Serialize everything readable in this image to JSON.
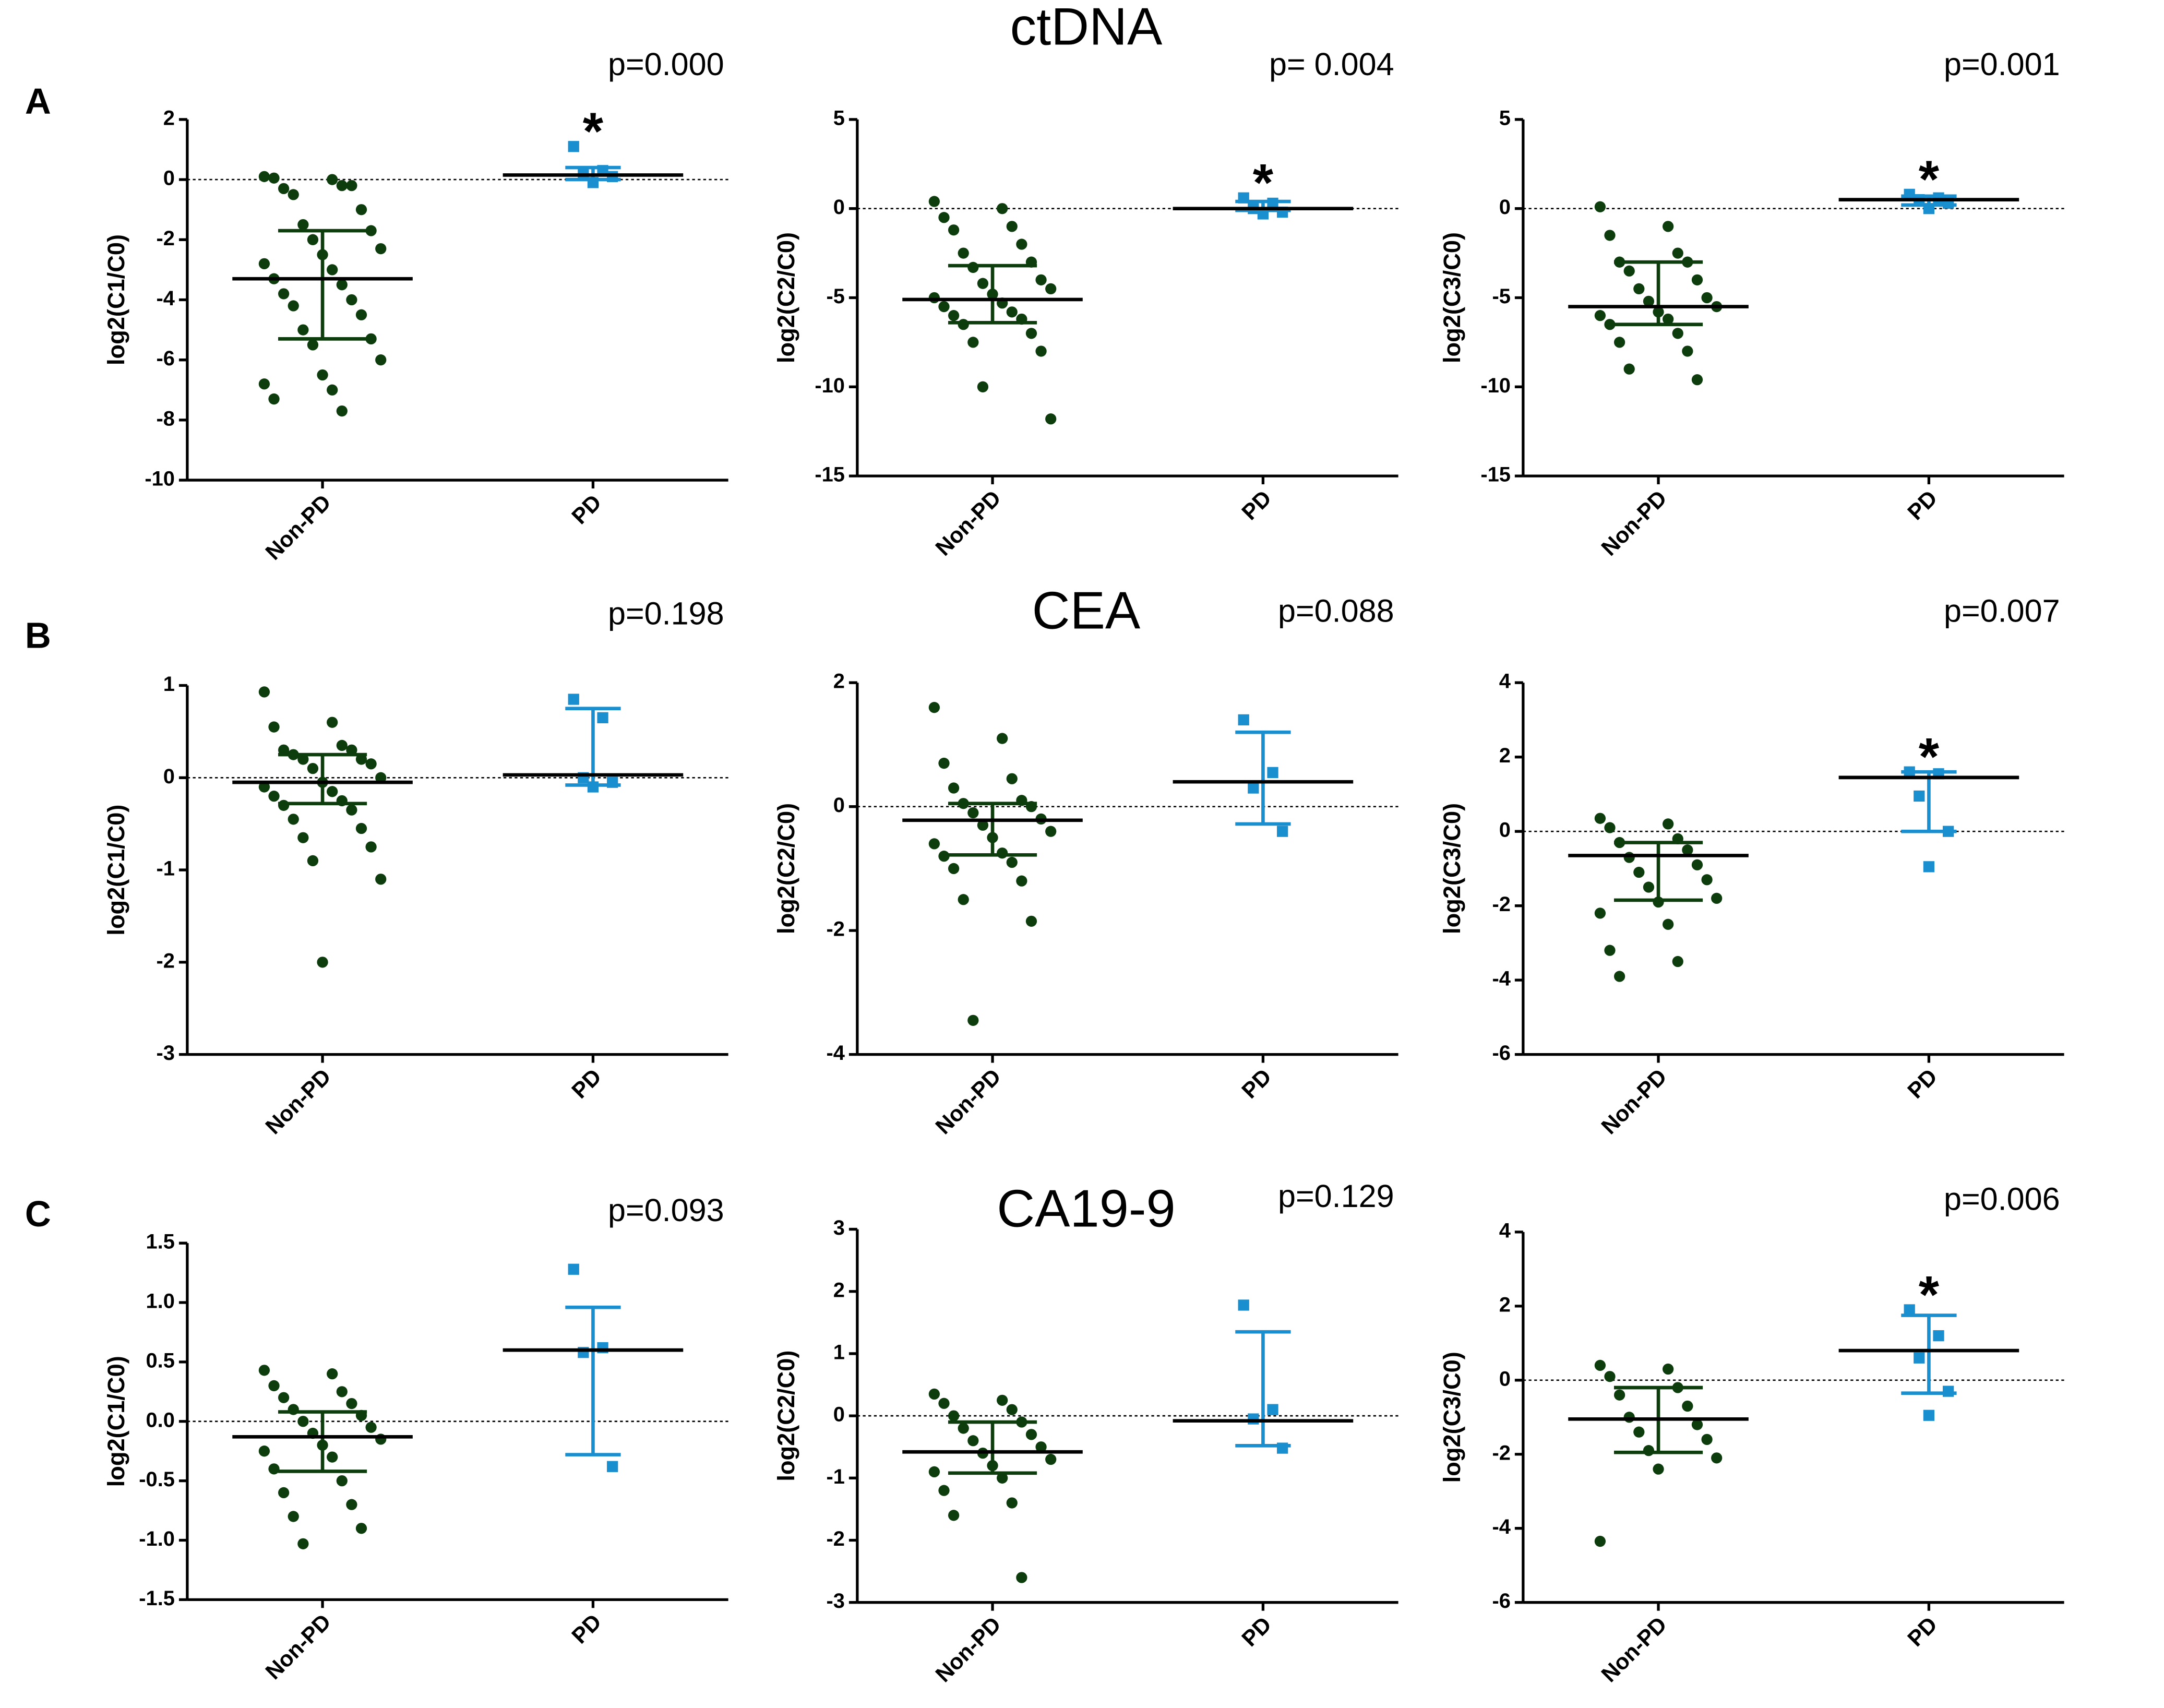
{
  "rows": [
    {
      "label": "A",
      "title": "ctDNA"
    },
    {
      "label": "B",
      "title": "CEA"
    },
    {
      "label": "C",
      "title": "CA19-9"
    }
  ],
  "chart_data": [
    {
      "type": "strip",
      "ylabel": "log2(C1/C0)",
      "categories": [
        "Non-PD",
        "PD"
      ],
      "ylim": [
        -10,
        2
      ],
      "yticks": [
        -10,
        -8,
        -6,
        -4,
        -2,
        0,
        2
      ],
      "reference_line": 0,
      "annotation": "p=0.000",
      "significance": "*",
      "groups": [
        {
          "color": "#0d3d0d",
          "values": [
            0.1,
            0,
            0.05,
            -0.2,
            -0.3,
            -0.2,
            -0.5,
            -1,
            -1.5,
            -1.7,
            -2,
            -2.3,
            -2.5,
            -2.8,
            -3,
            -3.3,
            -3.5,
            -3.8,
            -4,
            -4.2,
            -4.5,
            -5,
            -5.3,
            -5.5,
            -6,
            -6.5,
            -6.8,
            -7,
            -7.3,
            -7.7
          ],
          "center": -3.3,
          "lower": -5.3,
          "upper": -1.7
        },
        {
          "color": "#1a8fd0",
          "values": [
            1.1,
            0.3,
            0.2,
            0.1,
            -0.1
          ],
          "center": 0.15,
          "lower": 0,
          "upper": 0.4
        }
      ]
    },
    {
      "type": "strip",
      "ylabel": "log2(C2/C0)",
      "categories": [
        "Non-PD",
        "PD"
      ],
      "ylim": [
        -15,
        5
      ],
      "yticks": [
        -15,
        -10,
        -5,
        0,
        5
      ],
      "reference_line": 0,
      "annotation": "p= 0.004",
      "significance": "*",
      "groups": [
        {
          "color": "#0d3d0d",
          "values": [
            0.4,
            0,
            -0.5,
            -1,
            -1.2,
            -2,
            -2.5,
            -3,
            -3.3,
            -4,
            -4.2,
            -4.5,
            -4.8,
            -5,
            -5.3,
            -5.5,
            -5.8,
            -6,
            -6.2,
            -6.5,
            -7,
            -7.5,
            -8,
            -10,
            -11.8
          ],
          "center": -5.1,
          "lower": -6.4,
          "upper": -3.2
        },
        {
          "color": "#1a8fd0",
          "values": [
            0.6,
            0.3,
            0,
            -0.2,
            -0.3
          ],
          "center": 0,
          "lower": -0.1,
          "upper": 0.4
        }
      ]
    },
    {
      "type": "strip",
      "ylabel": "log2(C3/C0)",
      "categories": [
        "Non-PD",
        "PD"
      ],
      "ylim": [
        -15,
        5
      ],
      "yticks": [
        -15,
        -10,
        -5,
        0,
        5
      ],
      "reference_line": 0,
      "annotation": "p=0.001",
      "significance": "*",
      "groups": [
        {
          "color": "#0d3d0d",
          "values": [
            0.1,
            -1,
            -1.5,
            -2.5,
            -3,
            -3,
            -3.5,
            -4,
            -4.5,
            -5,
            -5.2,
            -5.5,
            -5.8,
            -6,
            -6.2,
            -6.5,
            -7,
            -7.5,
            -8,
            -9,
            -9.6
          ],
          "center": -5.5,
          "lower": -6.5,
          "upper": -3
        },
        {
          "color": "#1a8fd0",
          "values": [
            0.8,
            0.6,
            0.5,
            0.3,
            0
          ],
          "center": 0.5,
          "lower": 0.2,
          "upper": 0.7
        }
      ]
    },
    {
      "type": "strip",
      "ylabel": "log2(C1/C0)",
      "categories": [
        "Non-PD",
        "PD"
      ],
      "ylim": [
        -3,
        1
      ],
      "yticks": [
        -3,
        -2,
        -1,
        0,
        1
      ],
      "reference_line": 0,
      "annotation": "p=0.198",
      "groups": [
        {
          "color": "#0d3d0d",
          "values": [
            0.93,
            0.6,
            0.55,
            0.35,
            0.3,
            0.3,
            0.25,
            0.2,
            0.2,
            0.15,
            0.1,
            0,
            -0.05,
            -0.1,
            -0.15,
            -0.2,
            -0.25,
            -0.3,
            -0.35,
            -0.45,
            -0.55,
            -0.65,
            -0.75,
            -0.9,
            -1.1,
            -2.0
          ],
          "center": -0.05,
          "lower": -0.28,
          "upper": 0.25
        },
        {
          "color": "#1a8fd0",
          "values": [
            0.85,
            0.65,
            0,
            -0.05,
            -0.1
          ],
          "center": 0.03,
          "lower": -0.08,
          "upper": 0.75
        }
      ]
    },
    {
      "type": "strip",
      "ylabel": "log2(C2/C0)",
      "categories": [
        "Non-PD",
        "PD"
      ],
      "ylim": [
        -4,
        2
      ],
      "yticks": [
        -4,
        -2,
        0,
        2
      ],
      "reference_line": 0,
      "annotation": "p=0.088",
      "groups": [
        {
          "color": "#0d3d0d",
          "values": [
            1.6,
            1.1,
            0.7,
            0.45,
            0.3,
            0.1,
            0.05,
            0,
            -0.1,
            -0.2,
            -0.3,
            -0.4,
            -0.5,
            -0.6,
            -0.75,
            -0.8,
            -0.9,
            -1,
            -1.2,
            -1.5,
            -1.85,
            -3.45
          ],
          "center": -0.22,
          "lower": -0.78,
          "upper": 0.05
        },
        {
          "color": "#1a8fd0",
          "values": [
            1.4,
            0.55,
            0.3,
            -0.4
          ],
          "center": 0.4,
          "lower": -0.28,
          "upper": 1.2
        }
      ]
    },
    {
      "type": "strip",
      "ylabel": "log2(C3/C0)",
      "categories": [
        "Non-PD",
        "PD"
      ],
      "ylim": [
        -6,
        4
      ],
      "yticks": [
        -6,
        -4,
        -2,
        0,
        2,
        4
      ],
      "reference_line": 0,
      "annotation": "p=0.007",
      "significance": "*",
      "groups": [
        {
          "color": "#0d3d0d",
          "values": [
            0.35,
            0.2,
            0.1,
            -0.2,
            -0.3,
            -0.5,
            -0.7,
            -0.9,
            -1.1,
            -1.3,
            -1.5,
            -1.8,
            -1.9,
            -2.2,
            -2.5,
            -3.2,
            -3.5,
            -3.9
          ],
          "center": -0.65,
          "lower": -1.85,
          "upper": -0.3
        },
        {
          "color": "#1a8fd0",
          "values": [
            1.6,
            1.55,
            0.95,
            0,
            -0.95
          ],
          "center": 1.45,
          "lower": 0,
          "upper": 1.6
        }
      ]
    },
    {
      "type": "strip",
      "ylabel": "log2(C1/C0)",
      "categories": [
        "Non-PD",
        "PD"
      ],
      "ylim": [
        -1.5,
        1.5
      ],
      "yticks": [
        -1.5,
        {
          "value": -1,
          "label": "-1.0"
        },
        -0.5,
        {
          "value": 0,
          "label": "0.0"
        },
        0.5,
        {
          "value": 1,
          "label": "1.0"
        },
        1.5
      ],
      "reference_line": 0,
      "annotation": "p=0.093",
      "groups": [
        {
          "color": "#0d3d0d",
          "values": [
            0.43,
            0.4,
            0.3,
            0.25,
            0.2,
            0.15,
            0.1,
            0.05,
            0,
            -0.05,
            -0.1,
            -0.15,
            -0.2,
            -0.25,
            -0.3,
            -0.4,
            -0.5,
            -0.6,
            -0.7,
            -0.8,
            -0.9,
            -1.03
          ],
          "center": -0.13,
          "lower": -0.42,
          "upper": 0.08
        },
        {
          "color": "#1a8fd0",
          "values": [
            1.28,
            0.62,
            0.58,
            -0.38
          ],
          "center": 0.6,
          "lower": -0.28,
          "upper": 0.96
        }
      ]
    },
    {
      "type": "strip",
      "ylabel": "log2(C2/C0)",
      "categories": [
        "Non-PD",
        "PD"
      ],
      "ylim": [
        -3,
        3
      ],
      "yticks": [
        -3,
        -2,
        -1,
        0,
        1,
        2,
        3
      ],
      "reference_line": 0,
      "annotation": "p=0.129",
      "groups": [
        {
          "color": "#0d3d0d",
          "values": [
            0.35,
            0.25,
            0.2,
            0.1,
            0,
            -0.1,
            -0.2,
            -0.3,
            -0.4,
            -0.5,
            -0.6,
            -0.7,
            -0.8,
            -0.9,
            -1,
            -1.2,
            -1.4,
            -1.6,
            -2.6
          ],
          "center": -0.58,
          "lower": -0.92,
          "upper": -0.1
        },
        {
          "color": "#1a8fd0",
          "values": [
            1.78,
            0.1,
            -0.05,
            -0.52
          ],
          "center": -0.08,
          "lower": -0.48,
          "upper": 1.35
        }
      ]
    },
    {
      "type": "strip",
      "ylabel": "log2(C3/C0)",
      "categories": [
        "Non-PD",
        "PD"
      ],
      "ylim": [
        -6,
        4
      ],
      "yticks": [
        -6,
        -4,
        -2,
        0,
        2,
        4
      ],
      "reference_line": 0,
      "annotation": "p=0.006",
      "significance": "*",
      "groups": [
        {
          "color": "#0d3d0d",
          "values": [
            0.4,
            0.3,
            0.1,
            -0.2,
            -0.4,
            -0.7,
            -1,
            -1.2,
            -1.4,
            -1.6,
            -1.9,
            -2.1,
            -2.4,
            -4.35
          ],
          "center": -1.05,
          "lower": -1.95,
          "upper": -0.2
        },
        {
          "color": "#1a8fd0",
          "values": [
            1.9,
            1.2,
            0.6,
            -0.3,
            -0.95
          ],
          "center": 0.8,
          "lower": -0.35,
          "upper": 1.75
        }
      ]
    }
  ]
}
